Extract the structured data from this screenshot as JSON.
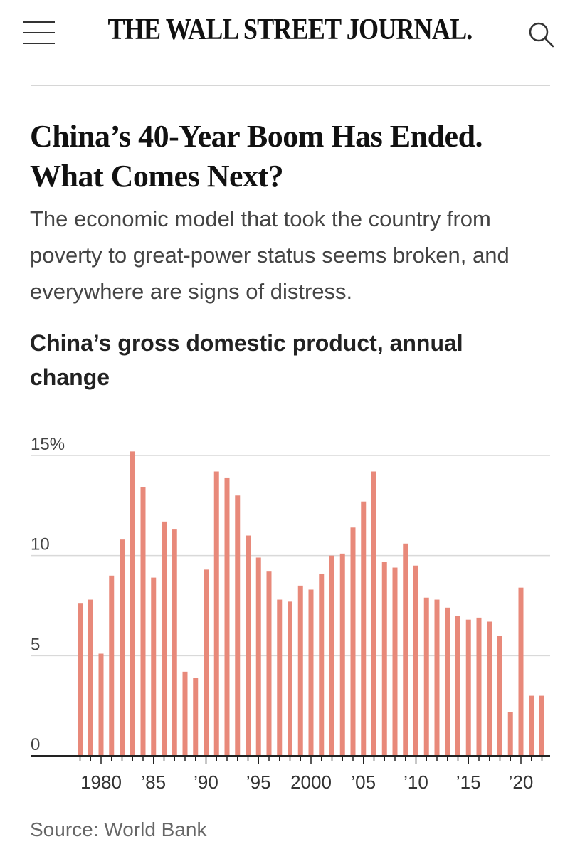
{
  "header": {
    "masthead": "THE WALL STREET JOURNAL.",
    "menu_icon": "hamburger-menu-icon",
    "search_icon": "search-icon"
  },
  "article": {
    "headline": "China’s 40-Year Boom Has Ended. What Comes Next?",
    "dek": "The economic model that took the country from poverty to great-power status seems broken, and everywhere are signs of distress."
  },
  "chart_data": {
    "type": "bar",
    "title": "China’s gross domestic product, annual change",
    "x": [
      1978,
      1979,
      1980,
      1981,
      1982,
      1983,
      1984,
      1985,
      1986,
      1987,
      1988,
      1989,
      1990,
      1991,
      1992,
      1993,
      1994,
      1995,
      1996,
      1997,
      1998,
      1999,
      2000,
      2001,
      2002,
      2003,
      2004,
      2005,
      2006,
      2007,
      2008,
      2009,
      2010,
      2011,
      2012,
      2013,
      2014,
      2015,
      2016,
      2017,
      2018,
      2019,
      2020,
      2021,
      2022
    ],
    "values": [
      7.6,
      7.8,
      5.1,
      9.0,
      10.8,
      15.2,
      13.4,
      8.9,
      11.7,
      11.3,
      4.2,
      3.9,
      9.3,
      14.2,
      13.9,
      13.0,
      11.0,
      9.9,
      9.2,
      7.8,
      7.7,
      8.5,
      8.3,
      9.1,
      10.0,
      10.1,
      11.4,
      12.7,
      14.2,
      9.7,
      9.4,
      10.6,
      9.5,
      7.9,
      7.8,
      7.4,
      7.0,
      6.8,
      6.9,
      6.7,
      6.0,
      2.2,
      8.4,
      3.0,
      3.0
    ],
    "ylim": [
      0,
      15
    ],
    "y_ticks": [
      {
        "value": 0,
        "label": "0"
      },
      {
        "value": 5,
        "label": "5"
      },
      {
        "value": 10,
        "label": "10"
      },
      {
        "value": 15,
        "label": "15%"
      }
    ],
    "x_tick_labels": [
      {
        "year": 1980,
        "label": "1980"
      },
      {
        "year": 1985,
        "label": "’85"
      },
      {
        "year": 1990,
        "label": "’90"
      },
      {
        "year": 1995,
        "label": "’95"
      },
      {
        "year": 2000,
        "label": "2000"
      },
      {
        "year": 2005,
        "label": "’05"
      },
      {
        "year": 2010,
        "label": "’10"
      },
      {
        "year": 2015,
        "label": "’15"
      },
      {
        "year": 2020,
        "label": "’20"
      }
    ],
    "grid": true,
    "colors": {
      "bar": "#e8897a",
      "grid": "#d9d9d9",
      "axis": "#222222"
    }
  },
  "source": "Source: World Bank"
}
